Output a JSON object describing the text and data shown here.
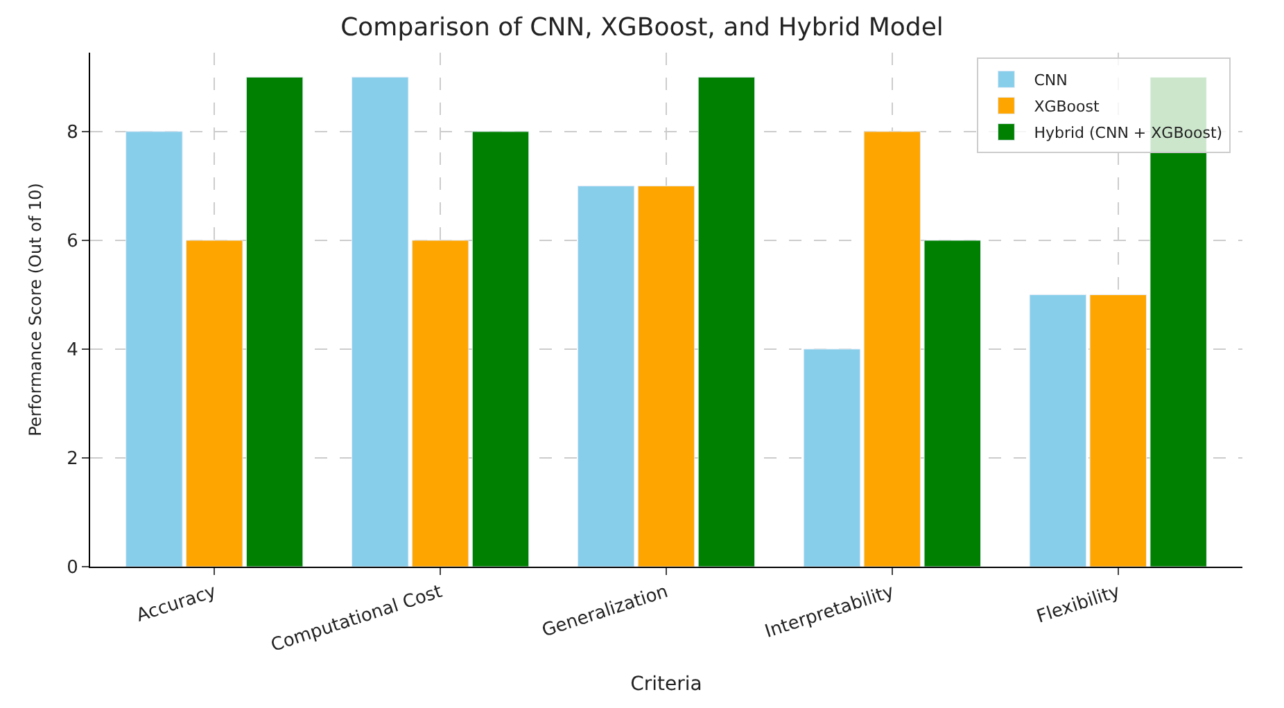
{
  "chart_data": {
    "type": "bar",
    "title": "Comparison of CNN, XGBoost, and Hybrid Model",
    "xlabel": "Criteria",
    "ylabel": "Performance Score (Out of 10)",
    "categories": [
      "Accuracy",
      "Computational Cost",
      "Generalization",
      "Interpretability",
      "Flexibility"
    ],
    "series": [
      {
        "name": "CNN",
        "color": "#87ceeb",
        "values": [
          8,
          9,
          7,
          4,
          5
        ]
      },
      {
        "name": "XGBoost",
        "color": "#ffa500",
        "values": [
          6,
          6,
          7,
          8,
          5
        ]
      },
      {
        "name": "Hybrid (CNN + XGBoost)",
        "color": "#008000",
        "values": [
          9,
          8,
          9,
          6,
          9
        ]
      }
    ],
    "ylim": [
      0,
      9.45
    ],
    "yticks": [
      0,
      2,
      4,
      6,
      8
    ],
    "grid": true,
    "legend": "top right"
  }
}
